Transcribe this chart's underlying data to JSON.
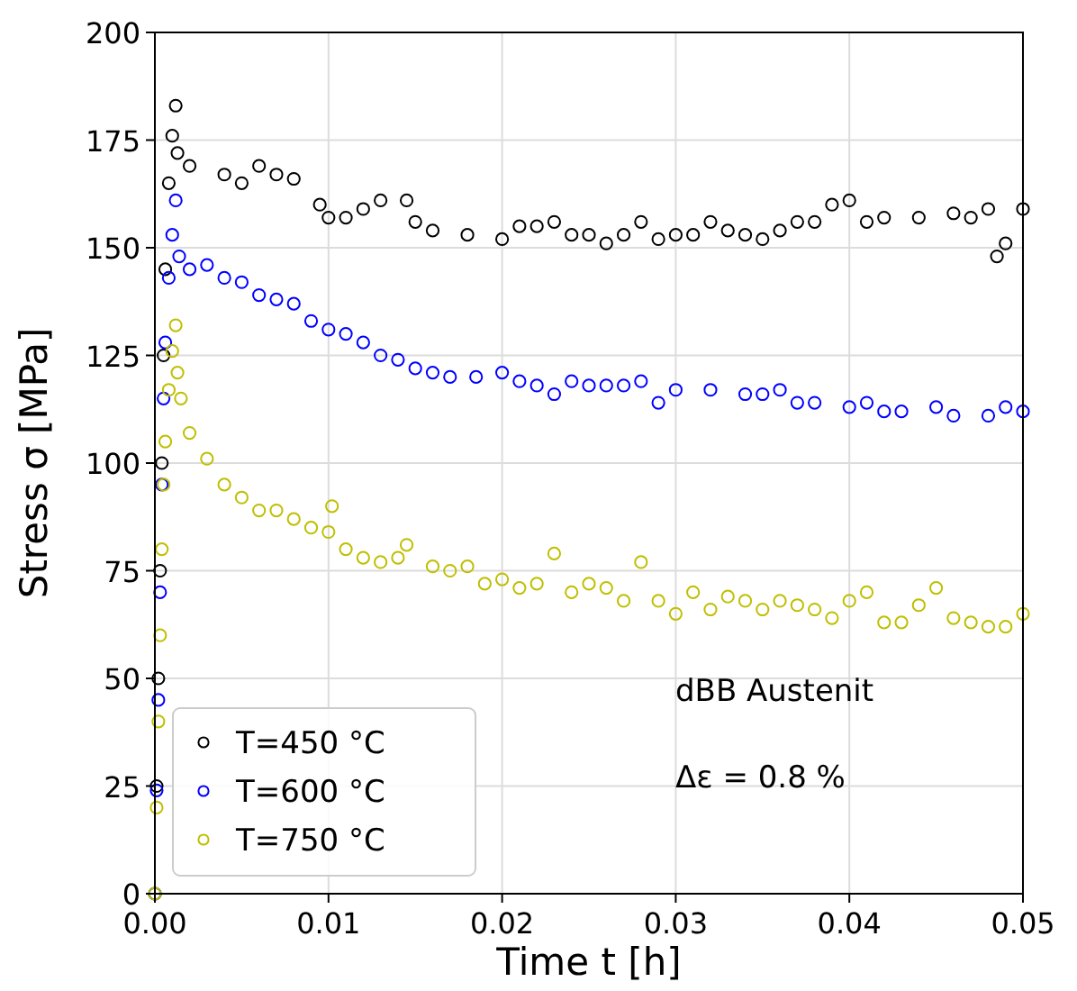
{
  "chart_data": {
    "type": "scatter",
    "xlabel": "Time t [h]",
    "ylabel": "Stress σ [MPa]",
    "xlim": [
      0,
      0.05
    ],
    "ylim": [
      0,
      200
    ],
    "xticks": [
      {
        "value": 0,
        "label": "0.00"
      },
      {
        "value": 0.01,
        "label": "0.01"
      },
      {
        "value": 0.02,
        "label": "0.02"
      },
      {
        "value": 0.03,
        "label": "0.03"
      },
      {
        "value": 0.04,
        "label": "0.04"
      },
      {
        "value": 0.05,
        "label": "0.05"
      }
    ],
    "yticks": [
      0,
      25,
      50,
      75,
      100,
      125,
      150,
      175,
      200
    ],
    "grid": true,
    "legend": "bottom left",
    "marker": "circle",
    "annotations": [
      "dBB Austenit",
      "Δε = 0.8 %"
    ],
    "series": [
      {
        "name": "T=450 °C",
        "color": "#000000",
        "x": [
          0,
          0.0001,
          0.0002,
          0.0003,
          0.0004,
          0.0005,
          0.0006,
          0.0008,
          0.001,
          0.0012,
          0.0013,
          0.002,
          0.004,
          0.005,
          0.006,
          0.007,
          0.008,
          0.0095,
          0.01,
          0.011,
          0.012,
          0.013,
          0.0145,
          0.015,
          0.016,
          0.018,
          0.02,
          0.021,
          0.022,
          0.023,
          0.024,
          0.025,
          0.026,
          0.027,
          0.028,
          0.029,
          0.03,
          0.031,
          0.032,
          0.033,
          0.034,
          0.035,
          0.036,
          0.037,
          0.038,
          0.039,
          0.04,
          0.041,
          0.042,
          0.044,
          0.046,
          0.047,
          0.048,
          0.0485,
          0.049,
          0.05
        ],
        "values": [
          0,
          25,
          50,
          75,
          100,
          125,
          145,
          165,
          176,
          183,
          172,
          169,
          167,
          165,
          169,
          167,
          166,
          160,
          157,
          157,
          159,
          161,
          161,
          156,
          154,
          153,
          152,
          155,
          155,
          156,
          153,
          153,
          151,
          153,
          156,
          152,
          153,
          153,
          156,
          154,
          153,
          152,
          154,
          156,
          156,
          160,
          161,
          156,
          157,
          157,
          158,
          157,
          159,
          148,
          151,
          159
        ]
      },
      {
        "name": "T=600 °C",
        "color": "#0000ff",
        "x": [
          0,
          0.0001,
          0.0002,
          0.0003,
          0.0004,
          0.0005,
          0.0006,
          0.0008,
          0.001,
          0.0012,
          0.0014,
          0.002,
          0.003,
          0.004,
          0.005,
          0.006,
          0.007,
          0.008,
          0.009,
          0.01,
          0.011,
          0.012,
          0.013,
          0.014,
          0.015,
          0.016,
          0.017,
          0.0185,
          0.02,
          0.021,
          0.022,
          0.023,
          0.024,
          0.025,
          0.026,
          0.027,
          0.028,
          0.029,
          0.03,
          0.032,
          0.034,
          0.035,
          0.036,
          0.037,
          0.038,
          0.04,
          0.041,
          0.042,
          0.043,
          0.045,
          0.046,
          0.048,
          0.049,
          0.05
        ],
        "values": [
          0,
          24,
          45,
          70,
          95,
          115,
          128,
          143,
          153,
          161,
          148,
          145,
          146,
          143,
          142,
          139,
          138,
          137,
          133,
          131,
          130,
          128,
          125,
          124,
          122,
          121,
          120,
          120,
          121,
          119,
          118,
          116,
          119,
          118,
          118,
          118,
          119,
          114,
          117,
          117,
          116,
          116,
          117,
          114,
          114,
          113,
          114,
          112,
          112,
          113,
          111,
          111,
          113,
          112
        ]
      },
      {
        "name": "T=750 °C",
        "color": "#bfbf00",
        "x": [
          0,
          0.0001,
          0.0002,
          0.0003,
          0.0004,
          0.0005,
          0.0006,
          0.0008,
          0.001,
          0.0012,
          0.0013,
          0.0015,
          0.002,
          0.003,
          0.004,
          0.005,
          0.006,
          0.007,
          0.008,
          0.009,
          0.01,
          0.0102,
          0.011,
          0.012,
          0.013,
          0.014,
          0.0145,
          0.016,
          0.017,
          0.018,
          0.019,
          0.02,
          0.021,
          0.022,
          0.023,
          0.024,
          0.025,
          0.026,
          0.027,
          0.028,
          0.029,
          0.03,
          0.031,
          0.032,
          0.033,
          0.034,
          0.035,
          0.036,
          0.037,
          0.038,
          0.039,
          0.04,
          0.041,
          0.042,
          0.043,
          0.044,
          0.045,
          0.046,
          0.047,
          0.048,
          0.049,
          0.05
        ],
        "values": [
          0,
          20,
          40,
          60,
          80,
          95,
          105,
          117,
          126,
          132,
          121,
          115,
          107,
          101,
          95,
          92,
          89,
          89,
          87,
          85,
          84,
          90,
          80,
          78,
          77,
          78,
          81,
          76,
          75,
          76,
          72,
          73,
          71,
          72,
          79,
          70,
          72,
          71,
          68,
          77,
          68,
          65,
          70,
          66,
          69,
          68,
          66,
          68,
          67,
          66,
          64,
          68,
          70,
          63,
          63,
          67,
          71,
          64,
          63,
          62,
          62,
          65
        ]
      }
    ]
  }
}
